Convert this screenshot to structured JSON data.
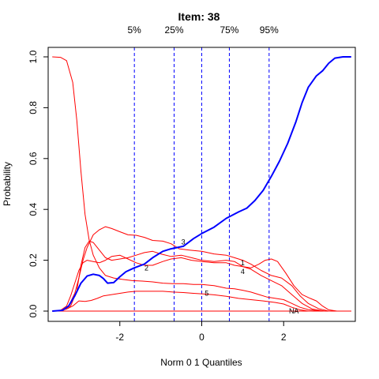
{
  "chart_data": {
    "type": "line",
    "title": "Item:  38",
    "xlabel": "Norm 0 1 Quantiles",
    "ylabel": "Probability",
    "xlim": [
      -3.75,
      3.75
    ],
    "ylim": [
      0,
      1
    ],
    "x_ticks": [
      -2,
      0,
      2
    ],
    "y_ticks": [
      0.0,
      0.2,
      0.4,
      0.6,
      0.8,
      1.0
    ],
    "x_tick_labels": [
      "-2",
      "0",
      "2"
    ],
    "y_tick_labels": [
      "0.0",
      "0.2",
      "0.4",
      "0.6",
      "0.8",
      "1.0"
    ],
    "quantile_lines": [
      {
        "label": "5%",
        "x": -1.645
      },
      {
        "label": "25%",
        "x": -0.674
      },
      {
        "label": "",
        "x": 0.0
      },
      {
        "label": "75%",
        "x": 0.674
      },
      {
        "label": "95%",
        "x": 1.645
      }
    ],
    "colors": {
      "options": "#ff0000",
      "key": "#0000ff",
      "quantile": "#0000ff",
      "axis": "#000000"
    },
    "series": [
      {
        "name": "",
        "key": true,
        "color": "#0000ff",
        "points": [
          [
            -3.65,
            0.0
          ],
          [
            -3.4,
            0.003
          ],
          [
            -3.25,
            0.02
          ],
          [
            -3.1,
            0.06
          ],
          [
            -2.95,
            0.11
          ],
          [
            -2.8,
            0.138
          ],
          [
            -2.65,
            0.145
          ],
          [
            -2.5,
            0.14
          ],
          [
            -2.4,
            0.128
          ],
          [
            -2.3,
            0.11
          ],
          [
            -2.15,
            0.112
          ],
          [
            -2.0,
            0.135
          ],
          [
            -1.85,
            0.155
          ],
          [
            -1.65,
            0.17
          ],
          [
            -1.4,
            0.185
          ],
          [
            -1.2,
            0.21
          ],
          [
            -0.95,
            0.235
          ],
          [
            -0.75,
            0.245
          ],
          [
            -0.45,
            0.255
          ],
          [
            -0.2,
            0.285
          ],
          [
            0.0,
            0.305
          ],
          [
            0.3,
            0.33
          ],
          [
            0.6,
            0.365
          ],
          [
            0.9,
            0.39
          ],
          [
            1.1,
            0.405
          ],
          [
            1.3,
            0.435
          ],
          [
            1.5,
            0.475
          ],
          [
            1.7,
            0.53
          ],
          [
            1.9,
            0.59
          ],
          [
            2.1,
            0.66
          ],
          [
            2.3,
            0.745
          ],
          [
            2.45,
            0.82
          ],
          [
            2.6,
            0.88
          ],
          [
            2.8,
            0.925
          ],
          [
            2.95,
            0.945
          ],
          [
            3.1,
            0.975
          ],
          [
            3.25,
            0.995
          ],
          [
            3.45,
            1.0
          ],
          [
            3.65,
            1.0
          ]
        ]
      },
      {
        "name": "",
        "label": "1",
        "color": "#ff0000",
        "points": [
          [
            -3.65,
            1.0
          ],
          [
            -3.45,
            0.998
          ],
          [
            -3.3,
            0.985
          ],
          [
            -3.15,
            0.9
          ],
          [
            -3.05,
            0.75
          ],
          [
            -2.95,
            0.55
          ],
          [
            -2.85,
            0.38
          ],
          [
            -2.75,
            0.28
          ],
          [
            -2.65,
            0.22
          ],
          [
            -2.5,
            0.17
          ],
          [
            -2.35,
            0.14
          ],
          [
            -2.15,
            0.13
          ],
          [
            -1.95,
            0.125
          ],
          [
            -1.7,
            0.12
          ],
          [
            -1.45,
            0.118
          ],
          [
            -1.2,
            0.115
          ],
          [
            -0.95,
            0.11
          ],
          [
            -0.7,
            0.108
          ],
          [
            -0.45,
            0.108
          ],
          [
            -0.2,
            0.105
          ],
          [
            0.0,
            0.105
          ],
          [
            0.3,
            0.1
          ],
          [
            0.6,
            0.09
          ],
          [
            0.8,
            0.088
          ],
          [
            1.0,
            0.082
          ],
          [
            1.2,
            0.075
          ],
          [
            1.4,
            0.065
          ],
          [
            1.6,
            0.055
          ],
          [
            1.8,
            0.05
          ],
          [
            2.0,
            0.045
          ],
          [
            2.2,
            0.03
          ],
          [
            2.4,
            0.015
          ],
          [
            2.6,
            0.006
          ],
          [
            2.8,
            0.002
          ],
          [
            3.0,
            0.0
          ],
          [
            3.65,
            0.0
          ]
        ]
      },
      {
        "name": "",
        "label": "2",
        "color": "#ff0000",
        "points": [
          [
            -3.65,
            0.0
          ],
          [
            -3.45,
            0.003
          ],
          [
            -3.3,
            0.02
          ],
          [
            -3.2,
            0.06
          ],
          [
            -3.1,
            0.11
          ],
          [
            -3.0,
            0.16
          ],
          [
            -2.9,
            0.19
          ],
          [
            -2.8,
            0.2
          ],
          [
            -2.65,
            0.195
          ],
          [
            -2.5,
            0.19
          ],
          [
            -2.35,
            0.2
          ],
          [
            -2.2,
            0.215
          ],
          [
            -2.0,
            0.22
          ],
          [
            -1.8,
            0.205
          ],
          [
            -1.6,
            0.19
          ],
          [
            -1.4,
            0.18
          ],
          [
            -1.2,
            0.18
          ],
          [
            -0.95,
            0.195
          ],
          [
            -0.75,
            0.205
          ],
          [
            -0.5,
            0.21
          ],
          [
            -0.25,
            0.2
          ],
          [
            0.0,
            0.195
          ],
          [
            0.3,
            0.19
          ],
          [
            0.6,
            0.19
          ],
          [
            0.8,
            0.18
          ],
          [
            1.0,
            0.175
          ],
          [
            1.2,
            0.165
          ],
          [
            1.45,
            0.14
          ],
          [
            1.7,
            0.12
          ],
          [
            1.95,
            0.1
          ],
          [
            2.2,
            0.065
          ],
          [
            2.45,
            0.03
          ],
          [
            2.7,
            0.008
          ],
          [
            3.0,
            0.0
          ],
          [
            3.65,
            0.0
          ]
        ]
      },
      {
        "name": "",
        "label": "3",
        "color": "#ff0000",
        "points": [
          [
            -3.65,
            0.0
          ],
          [
            -3.4,
            0.003
          ],
          [
            -3.25,
            0.02
          ],
          [
            -3.1,
            0.07
          ],
          [
            -3.0,
            0.13
          ],
          [
            -2.9,
            0.2
          ],
          [
            -2.8,
            0.25
          ],
          [
            -2.65,
            0.3
          ],
          [
            -2.5,
            0.32
          ],
          [
            -2.35,
            0.332
          ],
          [
            -2.2,
            0.325
          ],
          [
            -2.0,
            0.312
          ],
          [
            -1.8,
            0.3
          ],
          [
            -1.6,
            0.298
          ],
          [
            -1.4,
            0.29
          ],
          [
            -1.2,
            0.278
          ],
          [
            -0.95,
            0.275
          ],
          [
            -0.75,
            0.265
          ],
          [
            -0.55,
            0.245
          ],
          [
            -0.3,
            0.24
          ],
          [
            0.0,
            0.235
          ],
          [
            0.3,
            0.225
          ],
          [
            0.6,
            0.22
          ],
          [
            0.8,
            0.21
          ],
          [
            1.0,
            0.2
          ],
          [
            1.2,
            0.185
          ],
          [
            1.45,
            0.16
          ],
          [
            1.7,
            0.14
          ],
          [
            1.95,
            0.13
          ],
          [
            2.2,
            0.1
          ],
          [
            2.4,
            0.06
          ],
          [
            2.6,
            0.03
          ],
          [
            2.85,
            0.01
          ],
          [
            3.1,
            0.0
          ],
          [
            3.65,
            0.0
          ]
        ]
      },
      {
        "name": "",
        "label": "4",
        "color": "#ff0000",
        "points": [
          [
            -3.65,
            0.0
          ],
          [
            -3.4,
            0.003
          ],
          [
            -3.2,
            0.02
          ],
          [
            -3.05,
            0.08
          ],
          [
            -2.95,
            0.18
          ],
          [
            -2.85,
            0.25
          ],
          [
            -2.75,
            0.275
          ],
          [
            -2.65,
            0.27
          ],
          [
            -2.5,
            0.24
          ],
          [
            -2.35,
            0.21
          ],
          [
            -2.2,
            0.2
          ],
          [
            -2.0,
            0.205
          ],
          [
            -1.8,
            0.21
          ],
          [
            -1.6,
            0.22
          ],
          [
            -1.4,
            0.23
          ],
          [
            -1.2,
            0.235
          ],
          [
            -1.0,
            0.225
          ],
          [
            -0.75,
            0.215
          ],
          [
            -0.5,
            0.22
          ],
          [
            -0.25,
            0.21
          ],
          [
            0.0,
            0.2
          ],
          [
            0.3,
            0.195
          ],
          [
            0.6,
            0.2
          ],
          [
            0.8,
            0.195
          ],
          [
            1.0,
            0.175
          ],
          [
            1.2,
            0.17
          ],
          [
            1.4,
            0.185
          ],
          [
            1.55,
            0.2
          ],
          [
            1.7,
            0.205
          ],
          [
            1.85,
            0.195
          ],
          [
            2.05,
            0.15
          ],
          [
            2.25,
            0.1
          ],
          [
            2.45,
            0.065
          ],
          [
            2.65,
            0.05
          ],
          [
            2.8,
            0.04
          ],
          [
            2.95,
            0.02
          ],
          [
            3.1,
            0.005
          ],
          [
            3.3,
            0.0
          ],
          [
            3.65,
            0.0
          ]
        ]
      },
      {
        "name": "",
        "label": "5",
        "color": "#ff0000",
        "points": [
          [
            -3.65,
            0.0
          ],
          [
            -3.45,
            0.002
          ],
          [
            -3.3,
            0.008
          ],
          [
            -3.15,
            0.02
          ],
          [
            -3.0,
            0.04
          ],
          [
            -2.85,
            0.038
          ],
          [
            -2.7,
            0.042
          ],
          [
            -2.55,
            0.05
          ],
          [
            -2.4,
            0.06
          ],
          [
            -2.2,
            0.065
          ],
          [
            -2.0,
            0.07
          ],
          [
            -1.8,
            0.075
          ],
          [
            -1.6,
            0.078
          ],
          [
            -1.4,
            0.078
          ],
          [
            -1.2,
            0.078
          ],
          [
            -0.95,
            0.078
          ],
          [
            -0.7,
            0.075
          ],
          [
            -0.45,
            0.073
          ],
          [
            -0.2,
            0.07
          ],
          [
            0.0,
            0.068
          ],
          [
            0.3,
            0.064
          ],
          [
            0.6,
            0.058
          ],
          [
            0.9,
            0.05
          ],
          [
            1.2,
            0.045
          ],
          [
            1.5,
            0.04
          ],
          [
            1.8,
            0.034
          ],
          [
            2.0,
            0.028
          ],
          [
            2.2,
            0.015
          ],
          [
            2.4,
            0.005
          ],
          [
            2.6,
            0.0
          ],
          [
            3.65,
            0.0
          ]
        ]
      },
      {
        "name": "",
        "label": "NA",
        "color": "#ff0000",
        "points": [
          [
            -3.65,
            0.0
          ],
          [
            3.65,
            0.0
          ]
        ]
      }
    ],
    "curve_labels": [
      {
        "text": "1",
        "x": 1.0,
        "y": 0.19
      },
      {
        "text": "2",
        "x": -1.35,
        "y": 0.17
      },
      {
        "text": "3",
        "x": -0.45,
        "y": 0.272
      },
      {
        "text": "4",
        "x": 1.0,
        "y": 0.155
      },
      {
        "text": "5",
        "x": 0.12,
        "y": 0.07
      },
      {
        "text": "NA",
        "x": 2.25,
        "y": 0.0
      }
    ]
  }
}
